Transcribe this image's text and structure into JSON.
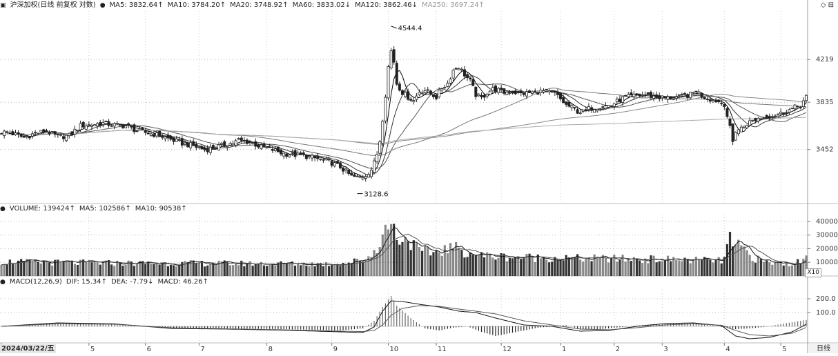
{
  "price_header": {
    "title": "沪深加权(日线 前复权 对数)",
    "ma5": "MA5: 3832.64↑",
    "ma10": "MA10: 3784.20↑",
    "ma20": "MA20: 3748.92↑",
    "ma60": "MA60: 3833.02↓",
    "ma120": "MA120: 3862.46↓",
    "ma250": "MA250: 3697.24↑"
  },
  "volume_header": {
    "title": "VOLUME: 139424↑",
    "ma5": "MA5: 102586↑",
    "ma10": "MA10: 90538↑"
  },
  "macd_header": {
    "title": "MACD(12,26,9)",
    "dif": "DIF: 15.34↑",
    "dea": "DEA: -7.79↓",
    "macd": "MACD: 46.26↑"
  },
  "date_label": "2024/03/22/五",
  "period_label": "日线",
  "scale_badge": "X10",
  "top_icons": "◇ ⊟",
  "chart_data": [
    {
      "type": "candlestick",
      "name": "price",
      "scale": "log",
      "y_ticks": [
        3452,
        3835,
        4219
      ],
      "ylim": [
        3060,
        4700
      ],
      "annotations": [
        {
          "label": "4544.4",
          "value": 4544.4,
          "x": 138
        },
        {
          "label": "3128.6",
          "value": 3128.6,
          "x": 126
        }
      ],
      "keypoints": [
        [
          0,
          3590
        ],
        [
          4,
          3575
        ],
        [
          8,
          3545
        ],
        [
          12,
          3580
        ],
        [
          16,
          3595
        ],
        [
          20,
          3550
        ],
        [
          24,
          3560
        ],
        [
          28,
          3640
        ],
        [
          32,
          3650
        ],
        [
          36,
          3660
        ],
        [
          40,
          3645
        ],
        [
          44,
          3640
        ],
        [
          48,
          3600
        ],
        [
          52,
          3580
        ],
        [
          56,
          3560
        ],
        [
          60,
          3530
        ],
        [
          64,
          3500
        ],
        [
          68,
          3480
        ],
        [
          72,
          3450
        ],
        [
          76,
          3470
        ],
        [
          80,
          3490
        ],
        [
          84,
          3520
        ],
        [
          88,
          3510
        ],
        [
          92,
          3470
        ],
        [
          96,
          3450
        ],
        [
          100,
          3420
        ],
        [
          104,
          3410
        ],
        [
          108,
          3400
        ],
        [
          112,
          3380
        ],
        [
          116,
          3360
        ],
        [
          120,
          3320
        ],
        [
          124,
          3250
        ],
        [
          127,
          3240
        ],
        [
          129,
          3260
        ],
        [
          131,
          3300
        ],
        [
          132,
          3350
        ],
        [
          133,
          3420
        ],
        [
          134,
          3520
        ],
        [
          135,
          3700
        ],
        [
          136,
          3900
        ],
        [
          137,
          4150
        ],
        [
          138,
          4300
        ],
        [
          139,
          4200
        ],
        [
          140,
          4000
        ],
        [
          142,
          3920
        ],
        [
          144,
          3880
        ],
        [
          146,
          3850
        ],
        [
          148,
          3930
        ],
        [
          150,
          3940
        ],
        [
          152,
          3910
        ],
        [
          154,
          3880
        ],
        [
          156,
          3960
        ],
        [
          158,
          4000
        ],
        [
          160,
          4120
        ],
        [
          162,
          4150
        ],
        [
          164,
          4080
        ],
        [
          166,
          4020
        ],
        [
          168,
          3900
        ],
        [
          170,
          3870
        ],
        [
          172,
          3920
        ],
        [
          174,
          3950
        ],
        [
          176,
          3940
        ],
        [
          178,
          3920
        ],
        [
          180,
          3930
        ],
        [
          184,
          3910
        ],
        [
          188,
          3920
        ],
        [
          192,
          3930
        ],
        [
          196,
          3910
        ],
        [
          200,
          3810
        ],
        [
          202,
          3790
        ],
        [
          204,
          3760
        ],
        [
          206,
          3750
        ],
        [
          208,
          3780
        ],
        [
          212,
          3800
        ],
        [
          216,
          3810
        ],
        [
          220,
          3870
        ],
        [
          224,
          3890
        ],
        [
          228,
          3900
        ],
        [
          232,
          3880
        ],
        [
          236,
          3870
        ],
        [
          240,
          3880
        ],
        [
          244,
          3900
        ],
        [
          246,
          3940
        ],
        [
          248,
          3890
        ],
        [
          250,
          3870
        ],
        [
          253,
          3850
        ],
        [
          256,
          3820
        ],
        [
          258,
          3620
        ],
        [
          259,
          3510
        ],
        [
          260,
          3600
        ],
        [
          262,
          3620
        ],
        [
          264,
          3660
        ],
        [
          266,
          3680
        ],
        [
          268,
          3700
        ],
        [
          272,
          3720
        ],
        [
          276,
          3740
        ],
        [
          280,
          3780
        ],
        [
          283,
          3810
        ],
        [
          285,
          3880
        ]
      ],
      "ma_lines": [
        {
          "name": "MA5",
          "color": "#000000",
          "period": 5
        },
        {
          "name": "MA10",
          "color": "#333333",
          "period": 10
        },
        {
          "name": "MA20",
          "color": "#555555",
          "period": 20
        },
        {
          "name": "MA60",
          "color": "#777777",
          "period": 60
        },
        {
          "name": "MA120",
          "color": "#888888",
          "period": 120
        },
        {
          "name": "MA250",
          "color": "#aaaaaa",
          "period": 250
        }
      ]
    },
    {
      "type": "bar",
      "name": "volume",
      "y_ticks": [
        10000,
        20000,
        30000,
        40000
      ],
      "ylim": [
        0,
        45000
      ],
      "keypoints": [
        [
          0,
          10500
        ],
        [
          20,
          9800
        ],
        [
          40,
          9500
        ],
        [
          60,
          9300
        ],
        [
          80,
          9200
        ],
        [
          100,
          9000
        ],
        [
          115,
          8800
        ],
        [
          122,
          9500
        ],
        [
          128,
          12000
        ],
        [
          131,
          15000
        ],
        [
          134,
          25000
        ],
        [
          136,
          33000
        ],
        [
          137,
          40000
        ],
        [
          138,
          38000
        ],
        [
          140,
          30000
        ],
        [
          142,
          26000
        ],
        [
          144,
          28000
        ],
        [
          146,
          22000
        ],
        [
          148,
          18000
        ],
        [
          152,
          17000
        ],
        [
          156,
          19000
        ],
        [
          160,
          21000
        ],
        [
          164,
          18000
        ],
        [
          170,
          15000
        ],
        [
          180,
          14000
        ],
        [
          190,
          13500
        ],
        [
          200,
          13000
        ],
        [
          220,
          12500
        ],
        [
          240,
          12000
        ],
        [
          255,
          11000
        ],
        [
          256,
          14000
        ],
        [
          258,
          28000
        ],
        [
          259,
          20000
        ],
        [
          262,
          22000
        ],
        [
          265,
          15000
        ],
        [
          270,
          10000
        ],
        [
          280,
          9000
        ],
        [
          284,
          11000
        ],
        [
          285,
          14000
        ]
      ]
    },
    {
      "type": "bar",
      "name": "macd",
      "y_ticks": [
        100.0,
        200.0
      ],
      "ylim": [
        -120,
        280
      ],
      "keypoints": [
        [
          0,
          0
        ],
        [
          20,
          25
        ],
        [
          40,
          15
        ],
        [
          60,
          -10
        ],
        [
          80,
          -15
        ],
        [
          100,
          -20
        ],
        [
          120,
          -30
        ],
        [
          128,
          -15
        ],
        [
          132,
          40
        ],
        [
          135,
          140
        ],
        [
          138,
          220
        ],
        [
          140,
          150
        ],
        [
          145,
          60
        ],
        [
          150,
          -15
        ],
        [
          155,
          -30
        ],
        [
          160,
          -10
        ],
        [
          165,
          0
        ],
        [
          170,
          -40
        ],
        [
          175,
          -70
        ],
        [
          180,
          -50
        ],
        [
          190,
          -10
        ],
        [
          200,
          10
        ],
        [
          205,
          -20
        ],
        [
          210,
          -25
        ],
        [
          220,
          -5
        ],
        [
          230,
          15
        ],
        [
          240,
          25
        ],
        [
          250,
          15
        ],
        [
          255,
          -5
        ],
        [
          260,
          -20
        ],
        [
          265,
          -15
        ],
        [
          270,
          -5
        ],
        [
          280,
          30
        ],
        [
          285,
          46
        ]
      ],
      "dif_keypoints": [
        [
          0,
          0
        ],
        [
          20,
          25
        ],
        [
          40,
          18
        ],
        [
          60,
          -15
        ],
        [
          80,
          -20
        ],
        [
          100,
          -28
        ],
        [
          120,
          -40
        ],
        [
          128,
          -45
        ],
        [
          132,
          -5
        ],
        [
          135,
          110
        ],
        [
          138,
          185
        ],
        [
          142,
          180
        ],
        [
          148,
          160
        ],
        [
          155,
          140
        ],
        [
          162,
          110
        ],
        [
          168,
          100
        ],
        [
          175,
          60
        ],
        [
          185,
          10
        ],
        [
          195,
          0
        ],
        [
          205,
          -35
        ],
        [
          215,
          -30
        ],
        [
          225,
          0
        ],
        [
          235,
          20
        ],
        [
          245,
          25
        ],
        [
          255,
          5
        ],
        [
          260,
          -70
        ],
        [
          265,
          -90
        ],
        [
          272,
          -80
        ],
        [
          280,
          -40
        ],
        [
          285,
          15
        ]
      ],
      "dea_keypoints": [
        [
          0,
          0
        ],
        [
          20,
          18
        ],
        [
          40,
          15
        ],
        [
          60,
          -10
        ],
        [
          80,
          -18
        ],
        [
          100,
          -25
        ],
        [
          120,
          -35
        ],
        [
          128,
          -38
        ],
        [
          132,
          -30
        ],
        [
          135,
          10
        ],
        [
          138,
          80
        ],
        [
          142,
          130
        ],
        [
          148,
          150
        ],
        [
          155,
          145
        ],
        [
          162,
          125
        ],
        [
          168,
          110
        ],
        [
          175,
          90
        ],
        [
          185,
          40
        ],
        [
          195,
          10
        ],
        [
          205,
          -20
        ],
        [
          215,
          -25
        ],
        [
          225,
          -10
        ],
        [
          235,
          10
        ],
        [
          245,
          18
        ],
        [
          255,
          8
        ],
        [
          260,
          -30
        ],
        [
          265,
          -60
        ],
        [
          272,
          -70
        ],
        [
          280,
          -50
        ],
        [
          285,
          -8
        ]
      ]
    }
  ],
  "x_axis": {
    "start_count": 286,
    "ticks": [
      {
        "label": "2024",
        "x": 0
      },
      {
        "label": "5",
        "x": 31
      },
      {
        "label": "6",
        "x": 51
      },
      {
        "label": "7",
        "x": 70
      },
      {
        "label": "8",
        "x": 94
      },
      {
        "label": "9",
        "x": 117
      },
      {
        "label": "10",
        "x": 137
      },
      {
        "label": "11",
        "x": 154
      },
      {
        "label": "12",
        "x": 177
      },
      {
        "label": "1",
        "x": 198
      },
      {
        "label": "2",
        "x": 217
      },
      {
        "label": "3",
        "x": 234
      },
      {
        "label": "4",
        "x": 256
      },
      {
        "label": "5",
        "x": 276
      }
    ]
  }
}
